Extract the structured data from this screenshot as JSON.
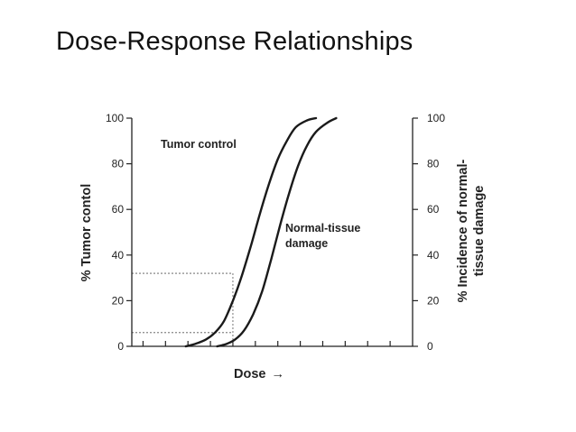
{
  "slide": {
    "title": "Dose-Response Relationships"
  },
  "chart_data": {
    "type": "line",
    "title": "",
    "xlabel": "Dose",
    "ylabel_left": "% Tumor contol",
    "ylabel_right_lines": [
      "% Incidence of normal-",
      "tissue damage"
    ],
    "ylim": [
      0,
      100
    ],
    "y_ticks": [
      0,
      20,
      40,
      60,
      80,
      100
    ],
    "x_ticks": [
      0.5,
      1.5,
      2.5,
      3.5,
      4.5,
      5.5,
      6.5,
      7.5,
      8.5,
      9.5,
      10.5,
      11.5
    ],
    "xlim": [
      0,
      12.5
    ],
    "x_tick_labels_shown": false,
    "x_arrow_symbol": "→",
    "grid": false,
    "series": [
      {
        "name": "Tumor control",
        "label_lines": [
          "Tumor control"
        ],
        "x": [
          2.4,
          2.8,
          3.3,
          3.7,
          4.1,
          4.5,
          4.9,
          5.3,
          5.7,
          6.1,
          6.5,
          6.9,
          7.3,
          7.8,
          8.2
        ],
        "y": [
          0,
          1,
          3,
          6,
          11,
          20,
          31,
          44,
          58,
          71,
          82,
          90,
          96,
          99,
          100
        ]
      },
      {
        "name": "Normal-tissue damage",
        "label_lines": [
          "Normal-tissue",
          "damage"
        ],
        "x": [
          3.8,
          4.2,
          4.6,
          5.0,
          5.4,
          5.8,
          6.2,
          6.6,
          7.0,
          7.4,
          7.8,
          8.2,
          8.7,
          9.1
        ],
        "y": [
          0,
          1,
          3,
          7,
          14,
          24,
          38,
          53,
          67,
          79,
          88,
          94,
          98,
          100
        ]
      }
    ],
    "reference_lines": [
      {
        "x": 4.5,
        "y": 32
      },
      {
        "x": 4.5,
        "y": 6
      }
    ]
  }
}
